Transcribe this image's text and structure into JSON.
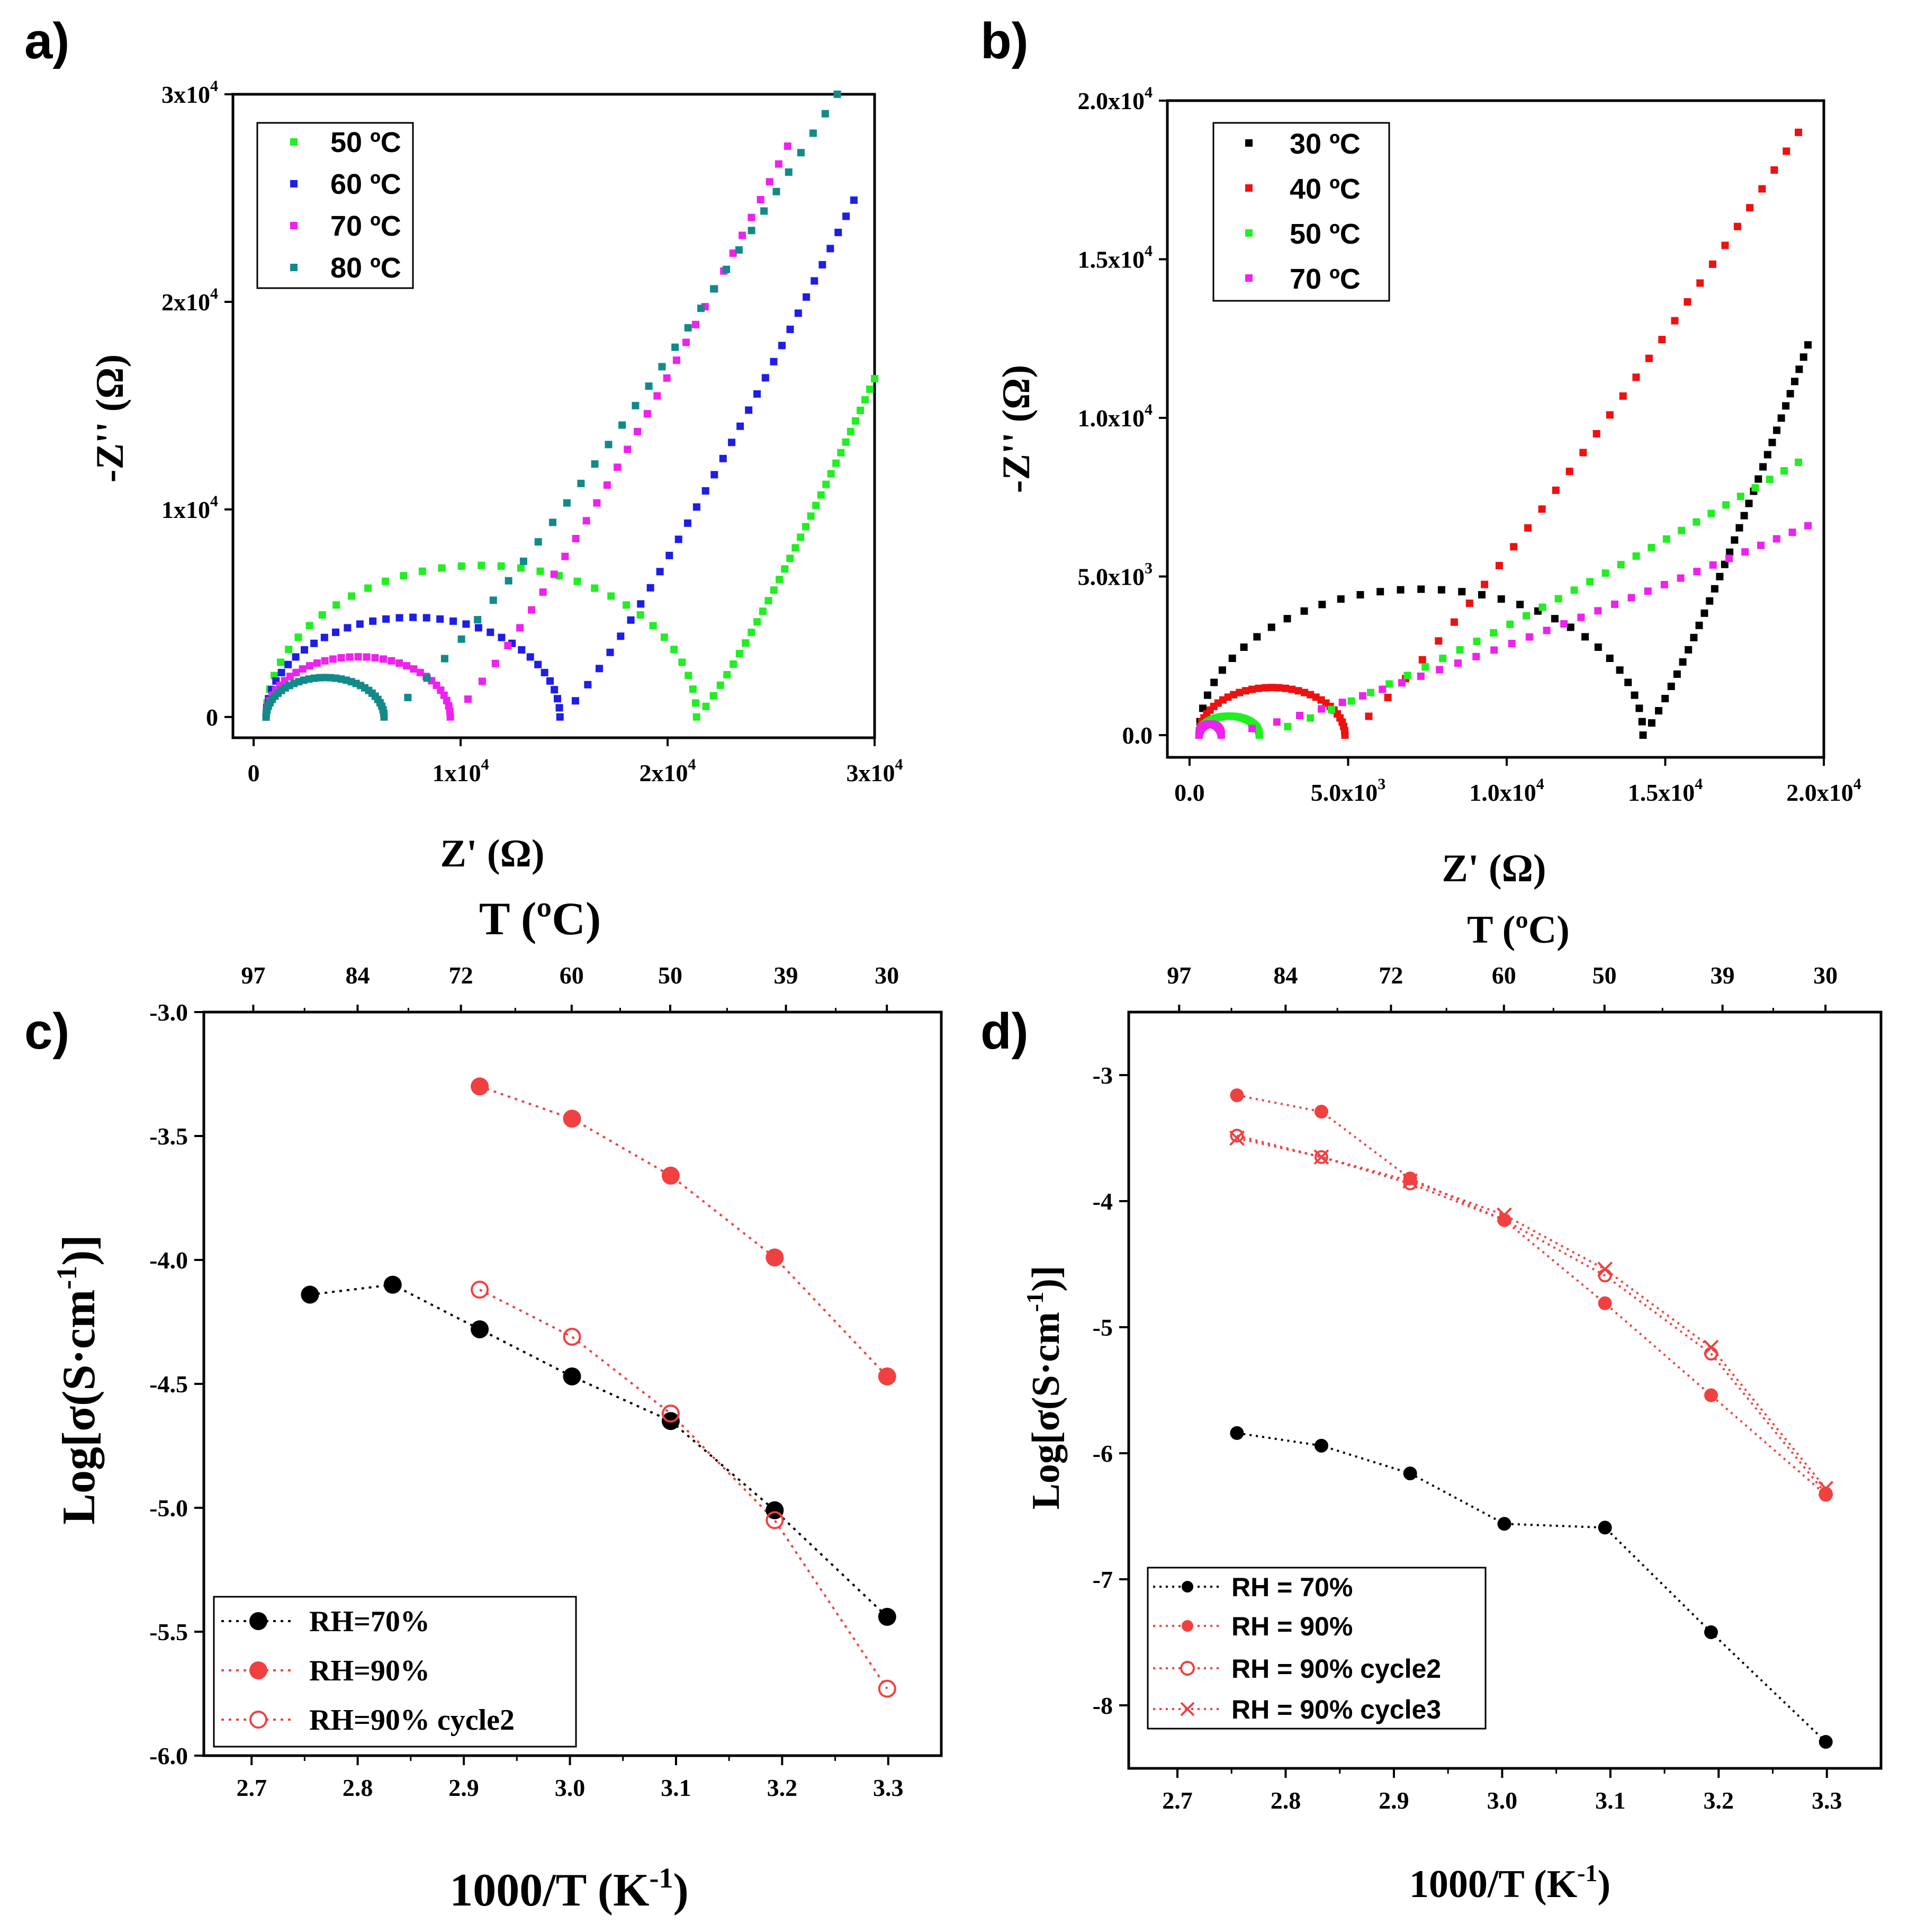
{
  "chart_data": [
    {
      "id": "a",
      "panel_label": "a)",
      "type": "scatter",
      "title": "",
      "xlabel": "Z' (Ω)",
      "ylabel": "-Z'' (Ω)",
      "xlim": [
        -1000,
        30000
      ],
      "ylim": [
        -1000,
        30000
      ],
      "xticks": [
        {
          "value": 0,
          "label": "0",
          "sup": ""
        },
        {
          "value": 10000,
          "label": "1x10",
          "sup": "4"
        },
        {
          "value": 20000,
          "label": "2x10",
          "sup": "4"
        },
        {
          "value": 30000,
          "label": "3x10",
          "sup": "4"
        }
      ],
      "yticks": [
        {
          "value": 0,
          "label": "0",
          "sup": ""
        },
        {
          "value": 10000,
          "label": "1x10",
          "sup": "4"
        },
        {
          "value": 20000,
          "label": "2x10",
          "sup": "4"
        },
        {
          "value": 30000,
          "label": "3x10",
          "sup": "4"
        }
      ],
      "legend_position": "top-left",
      "series": [
        {
          "name": "50 ºC",
          "color": "#22ee22",
          "model": {
            "r0": 600,
            "r1": 21400,
            "peak": 7300,
            "tail_end": [
              30000,
              16300
            ]
          }
        },
        {
          "name": "60 ºC",
          "color": "#1e1ee6",
          "model": {
            "r0": 600,
            "r1": 14800,
            "peak": 4800,
            "tail_end": [
              29000,
              24900
            ]
          }
        },
        {
          "name": "70 ºC",
          "color": "#ee22ee",
          "model": {
            "r0": 600,
            "r1": 9500,
            "peak": 2900,
            "tail_end": [
              25800,
              27500
            ]
          }
        },
        {
          "name": "80 ºC",
          "color": "#138a8a",
          "model": {
            "r0": 600,
            "r1": 6300,
            "peak": 1900,
            "tail_end": [
              28200,
              30000
            ]
          }
        }
      ]
    },
    {
      "id": "b",
      "panel_label": "b)",
      "type": "scatter",
      "title": "",
      "xlabel": "Z' (Ω)",
      "ylabel": "-Z'' (Ω)",
      "xlim": [
        -700,
        20000
      ],
      "ylim": [
        -700,
        20000
      ],
      "xticks": [
        {
          "value": 0,
          "label": "0.0",
          "sup": ""
        },
        {
          "value": 5000,
          "label": "5.0x10",
          "sup": "3"
        },
        {
          "value": 10000,
          "label": "1.0x10",
          "sup": "4"
        },
        {
          "value": 15000,
          "label": "1.5x10",
          "sup": "4"
        },
        {
          "value": 20000,
          "label": "2.0x10",
          "sup": "4"
        }
      ],
      "yticks": [
        {
          "value": 0,
          "label": "0.0",
          "sup": ""
        },
        {
          "value": 5000,
          "label": "5.0x10",
          "sup": "3"
        },
        {
          "value": 10000,
          "label": "1.0x10",
          "sup": "4"
        },
        {
          "value": 15000,
          "label": "1.5x10",
          "sup": "4"
        },
        {
          "value": 20000,
          "label": "2.0x10",
          "sup": "4"
        }
      ],
      "legend_position": "top-left",
      "series": [
        {
          "name": "30 ºC",
          "color": "#000000",
          "model": {
            "r0": 300,
            "r1": 14300,
            "peak": 4600,
            "tail_end": [
              19500,
              12300
            ]
          }
        },
        {
          "name": "40 ºC",
          "color": "#ee1111",
          "model": {
            "r0": 300,
            "r1": 4900,
            "peak": 1500,
            "tail_end": [
              19200,
              19000
            ]
          }
        },
        {
          "name": "50 ºC",
          "color": "#22ee22",
          "model": {
            "r0": 300,
            "r1": 2200,
            "peak": 600,
            "tail_end": [
              19200,
              8600
            ]
          }
        },
        {
          "name": "70 ºC",
          "color": "#ee22ee",
          "model": {
            "r0": 300,
            "r1": 1000,
            "peak": 350,
            "tail_end": [
              19500,
              6600
            ]
          }
        }
      ]
    },
    {
      "id": "c",
      "panel_label": "c)",
      "type": "line",
      "title": "",
      "xlabel": "1000/T (K",
      "xlabel_sup": "-1",
      "xlabel_tail": ")",
      "ylabel": "Log[σ(S·cm",
      "ylabel_sup": "-1",
      "ylabel_tail": ")]",
      "top_xlabel": "T (ºC)",
      "xlim": [
        2.655,
        3.35
      ],
      "ylim": [
        -6.0,
        -3.0
      ],
      "xticks": [
        2.7,
        2.8,
        2.9,
        3.0,
        3.1,
        3.2,
        3.3
      ],
      "xticklabels": [
        "2.7",
        "2.8",
        "2.9",
        "3.0",
        "3.1",
        "3.2",
        "3.3"
      ],
      "yticks": [
        -6.0,
        -5.5,
        -5.0,
        -4.5,
        -4.0,
        -3.5,
        -3.0
      ],
      "yticklabels": [
        "-6.0",
        "-5.5",
        "-5.0",
        "-4.5",
        "-4.0",
        "-3.5",
        "-3.0"
      ],
      "top_ticks": [
        97,
        84,
        72,
        60,
        50,
        39,
        30
      ],
      "top_ticklabels": [
        "97",
        "84",
        "72",
        "60",
        "50",
        "39",
        "30"
      ],
      "legend_position": "bottom-left",
      "series": [
        {
          "name": "RH=70%",
          "color": "#000000",
          "marker": "filled",
          "x": [
            2.755,
            2.833,
            2.915,
            3.002,
            3.095,
            3.193,
            3.299
          ],
          "y": [
            -4.14,
            -4.1,
            -4.28,
            -4.47,
            -4.65,
            -5.01,
            -5.44
          ]
        },
        {
          "name": "RH=90%",
          "color": "#f04040",
          "marker": "filled",
          "x": [
            2.915,
            3.002,
            3.095,
            3.193,
            3.299
          ],
          "y": [
            -3.3,
            -3.43,
            -3.66,
            -3.99,
            -4.47
          ]
        },
        {
          "name": "RH=90% cycle2",
          "color": "#f04040",
          "marker": "open",
          "x": [
            2.915,
            3.002,
            3.095,
            3.193,
            3.299
          ],
          "y": [
            -4.12,
            -4.31,
            -4.62,
            -5.05,
            -5.73
          ]
        }
      ]
    },
    {
      "id": "d",
      "panel_label": "d)",
      "type": "line",
      "title": "",
      "xlabel": "1000/T (K",
      "xlabel_sup": "-1",
      "xlabel_tail": ")",
      "ylabel": "Log[σ(S·cm",
      "ylabel_sup": "-1",
      "ylabel_tail": ")]",
      "top_xlabel": "T (ºC)",
      "xlim": [
        2.655,
        3.35
      ],
      "ylim": [
        -8.5,
        -2.5
      ],
      "xticks": [
        2.7,
        2.8,
        2.9,
        3.0,
        3.1,
        3.2,
        3.3
      ],
      "xticklabels": [
        "2.7",
        "2.8",
        "2.9",
        "3.0",
        "3.1",
        "3.2",
        "3.3"
      ],
      "yticks": [
        -8,
        -7,
        -6,
        -5,
        -4,
        -3
      ],
      "yticklabels": [
        "-8",
        "-7",
        "-6",
        "-5",
        "-4",
        "-3"
      ],
      "top_ticks": [
        97,
        84,
        72,
        60,
        50,
        39,
        30
      ],
      "top_ticklabels": [
        "97",
        "84",
        "72",
        "60",
        "50",
        "39",
        "30"
      ],
      "legend_position": "bottom-left",
      "series": [
        {
          "name": "RH = 70%",
          "color": "#000000",
          "marker": "filled",
          "x": [
            2.755,
            2.833,
            2.915,
            3.002,
            3.095,
            3.193,
            3.299
          ],
          "y": [
            -5.84,
            -5.94,
            -6.16,
            -6.56,
            -6.59,
            -7.42,
            -8.29
          ]
        },
        {
          "name": "RH = 90%",
          "color": "#f04040",
          "marker": "filled",
          "x": [
            2.755,
            2.833,
            2.915,
            3.002,
            3.095,
            3.193,
            3.299
          ],
          "y": [
            -3.16,
            -3.29,
            -3.82,
            -4.15,
            -4.81,
            -5.54,
            -6.33
          ]
        },
        {
          "name": "RH = 90% cycle2",
          "color": "#f04040",
          "marker": "open",
          "x": [
            2.755,
            2.833,
            2.915,
            3.002,
            3.095,
            3.193,
            3.299
          ],
          "y": [
            -3.48,
            -3.65,
            -3.86,
            -4.15,
            -4.59,
            -5.21,
            -6.32
          ]
        },
        {
          "name": "RH = 90% cycle3",
          "color": "#f04040",
          "marker": "cross",
          "x": [
            2.755,
            2.833,
            2.915,
            3.002,
            3.095,
            3.193,
            3.299
          ],
          "y": [
            -3.5,
            -3.65,
            -3.84,
            -4.11,
            -4.54,
            -5.16,
            -6.28
          ]
        }
      ]
    }
  ]
}
